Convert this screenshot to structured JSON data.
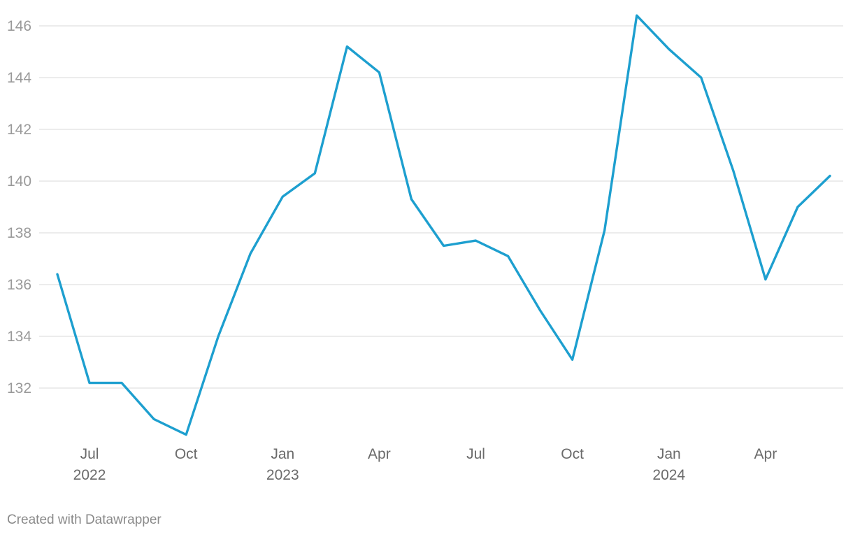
{
  "chart_data": {
    "type": "line",
    "x": [
      "2022-06",
      "2022-07",
      "2022-08",
      "2022-09",
      "2022-10",
      "2022-11",
      "2022-12",
      "2023-01",
      "2023-02",
      "2023-03",
      "2023-04",
      "2023-05",
      "2023-06",
      "2023-07",
      "2023-08",
      "2023-09",
      "2023-10",
      "2023-11",
      "2023-12",
      "2024-01",
      "2024-02",
      "2024-03",
      "2024-04",
      "2024-05",
      "2024-06"
    ],
    "series": [
      {
        "values": [
          136.4,
          132.2,
          132.2,
          130.8,
          130.2,
          134.0,
          137.2,
          139.4,
          140.3,
          145.2,
          144.2,
          139.3,
          137.5,
          137.7,
          137.1,
          135.0,
          133.1,
          138.1,
          146.4,
          145.1,
          144.0,
          140.4,
          136.2,
          139.0,
          140.2
        ]
      }
    ],
    "ylim": [
      130,
      146.5
    ],
    "y_ticks": [
      132,
      134,
      136,
      138,
      140,
      142,
      144,
      146
    ],
    "x_ticks": [
      {
        "x": "2022-07",
        "label": "Jul",
        "year": "2022"
      },
      {
        "x": "2022-10",
        "label": "Oct",
        "year": ""
      },
      {
        "x": "2023-01",
        "label": "Jan",
        "year": "2023"
      },
      {
        "x": "2023-04",
        "label": "Apr",
        "year": ""
      },
      {
        "x": "2023-07",
        "label": "Jul",
        "year": ""
      },
      {
        "x": "2023-10",
        "label": "Oct",
        "year": ""
      },
      {
        "x": "2024-01",
        "label": "Jan",
        "year": "2024"
      },
      {
        "x": "2024-04",
        "label": "Apr",
        "year": ""
      }
    ],
    "grid": true,
    "legend": "none",
    "line_color": "#1d9fcf"
  },
  "footer": {
    "credit": "Created with Datawrapper"
  }
}
